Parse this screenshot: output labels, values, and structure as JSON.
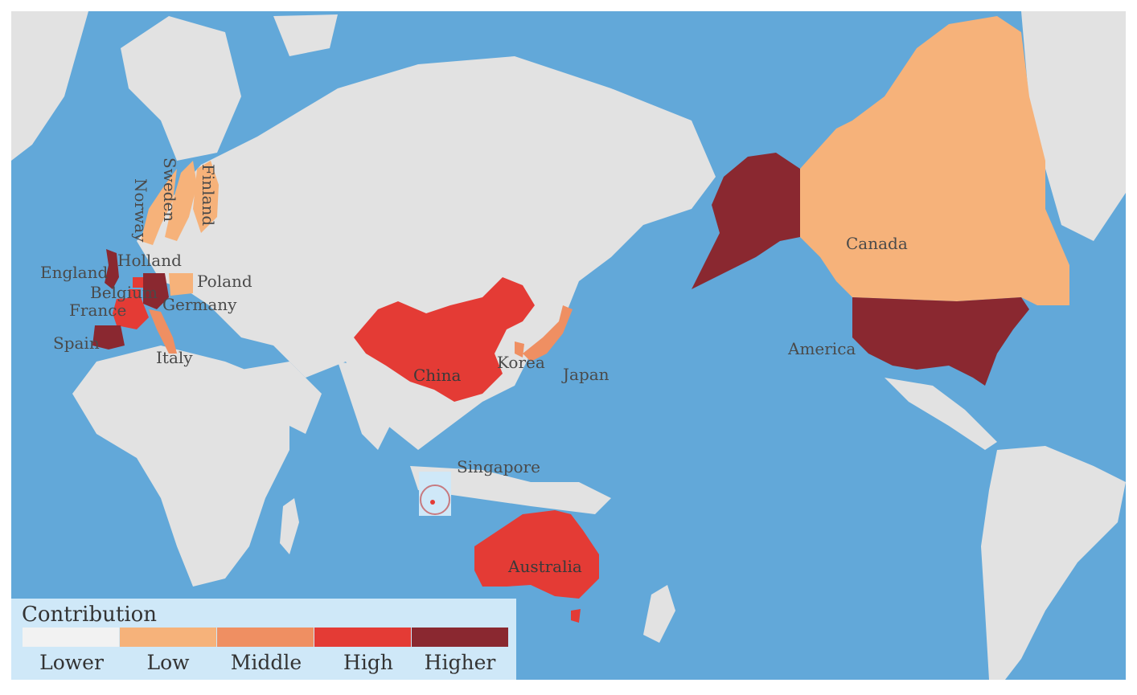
{
  "colors": {
    "ocean": "#62a8d9",
    "land": "#e2e2e2",
    "lower": "#f2f2f2",
    "low": "#f6b27a",
    "middle": "#ef8f62",
    "high": "#e43b35",
    "higher": "#8a2830",
    "legend_bg": "#cfe8f8"
  },
  "countries": {
    "canada": "Canada",
    "america": "America",
    "china": "China",
    "korea": "Korea",
    "japan": "Japan",
    "australia": "Australia",
    "singapore": "Singapore",
    "england": "England",
    "holland": "Holland",
    "belgium": "Belgium",
    "france": "France",
    "germany": "Germany",
    "poland": "Poland",
    "spain": "Spain",
    "italy": "Italy",
    "norway": "Norway",
    "sweden": "Sweden",
    "finland": "Finland"
  },
  "legend": {
    "title": "Contribution",
    "levels": [
      {
        "label": "Lower",
        "color": "#f2f2f2"
      },
      {
        "label": "Low",
        "color": "#f6b27a"
      },
      {
        "label": "Middle",
        "color": "#ef8f62"
      },
      {
        "label": "High",
        "color": "#e43b35"
      },
      {
        "label": "Higher",
        "color": "#8a2830"
      }
    ]
  }
}
